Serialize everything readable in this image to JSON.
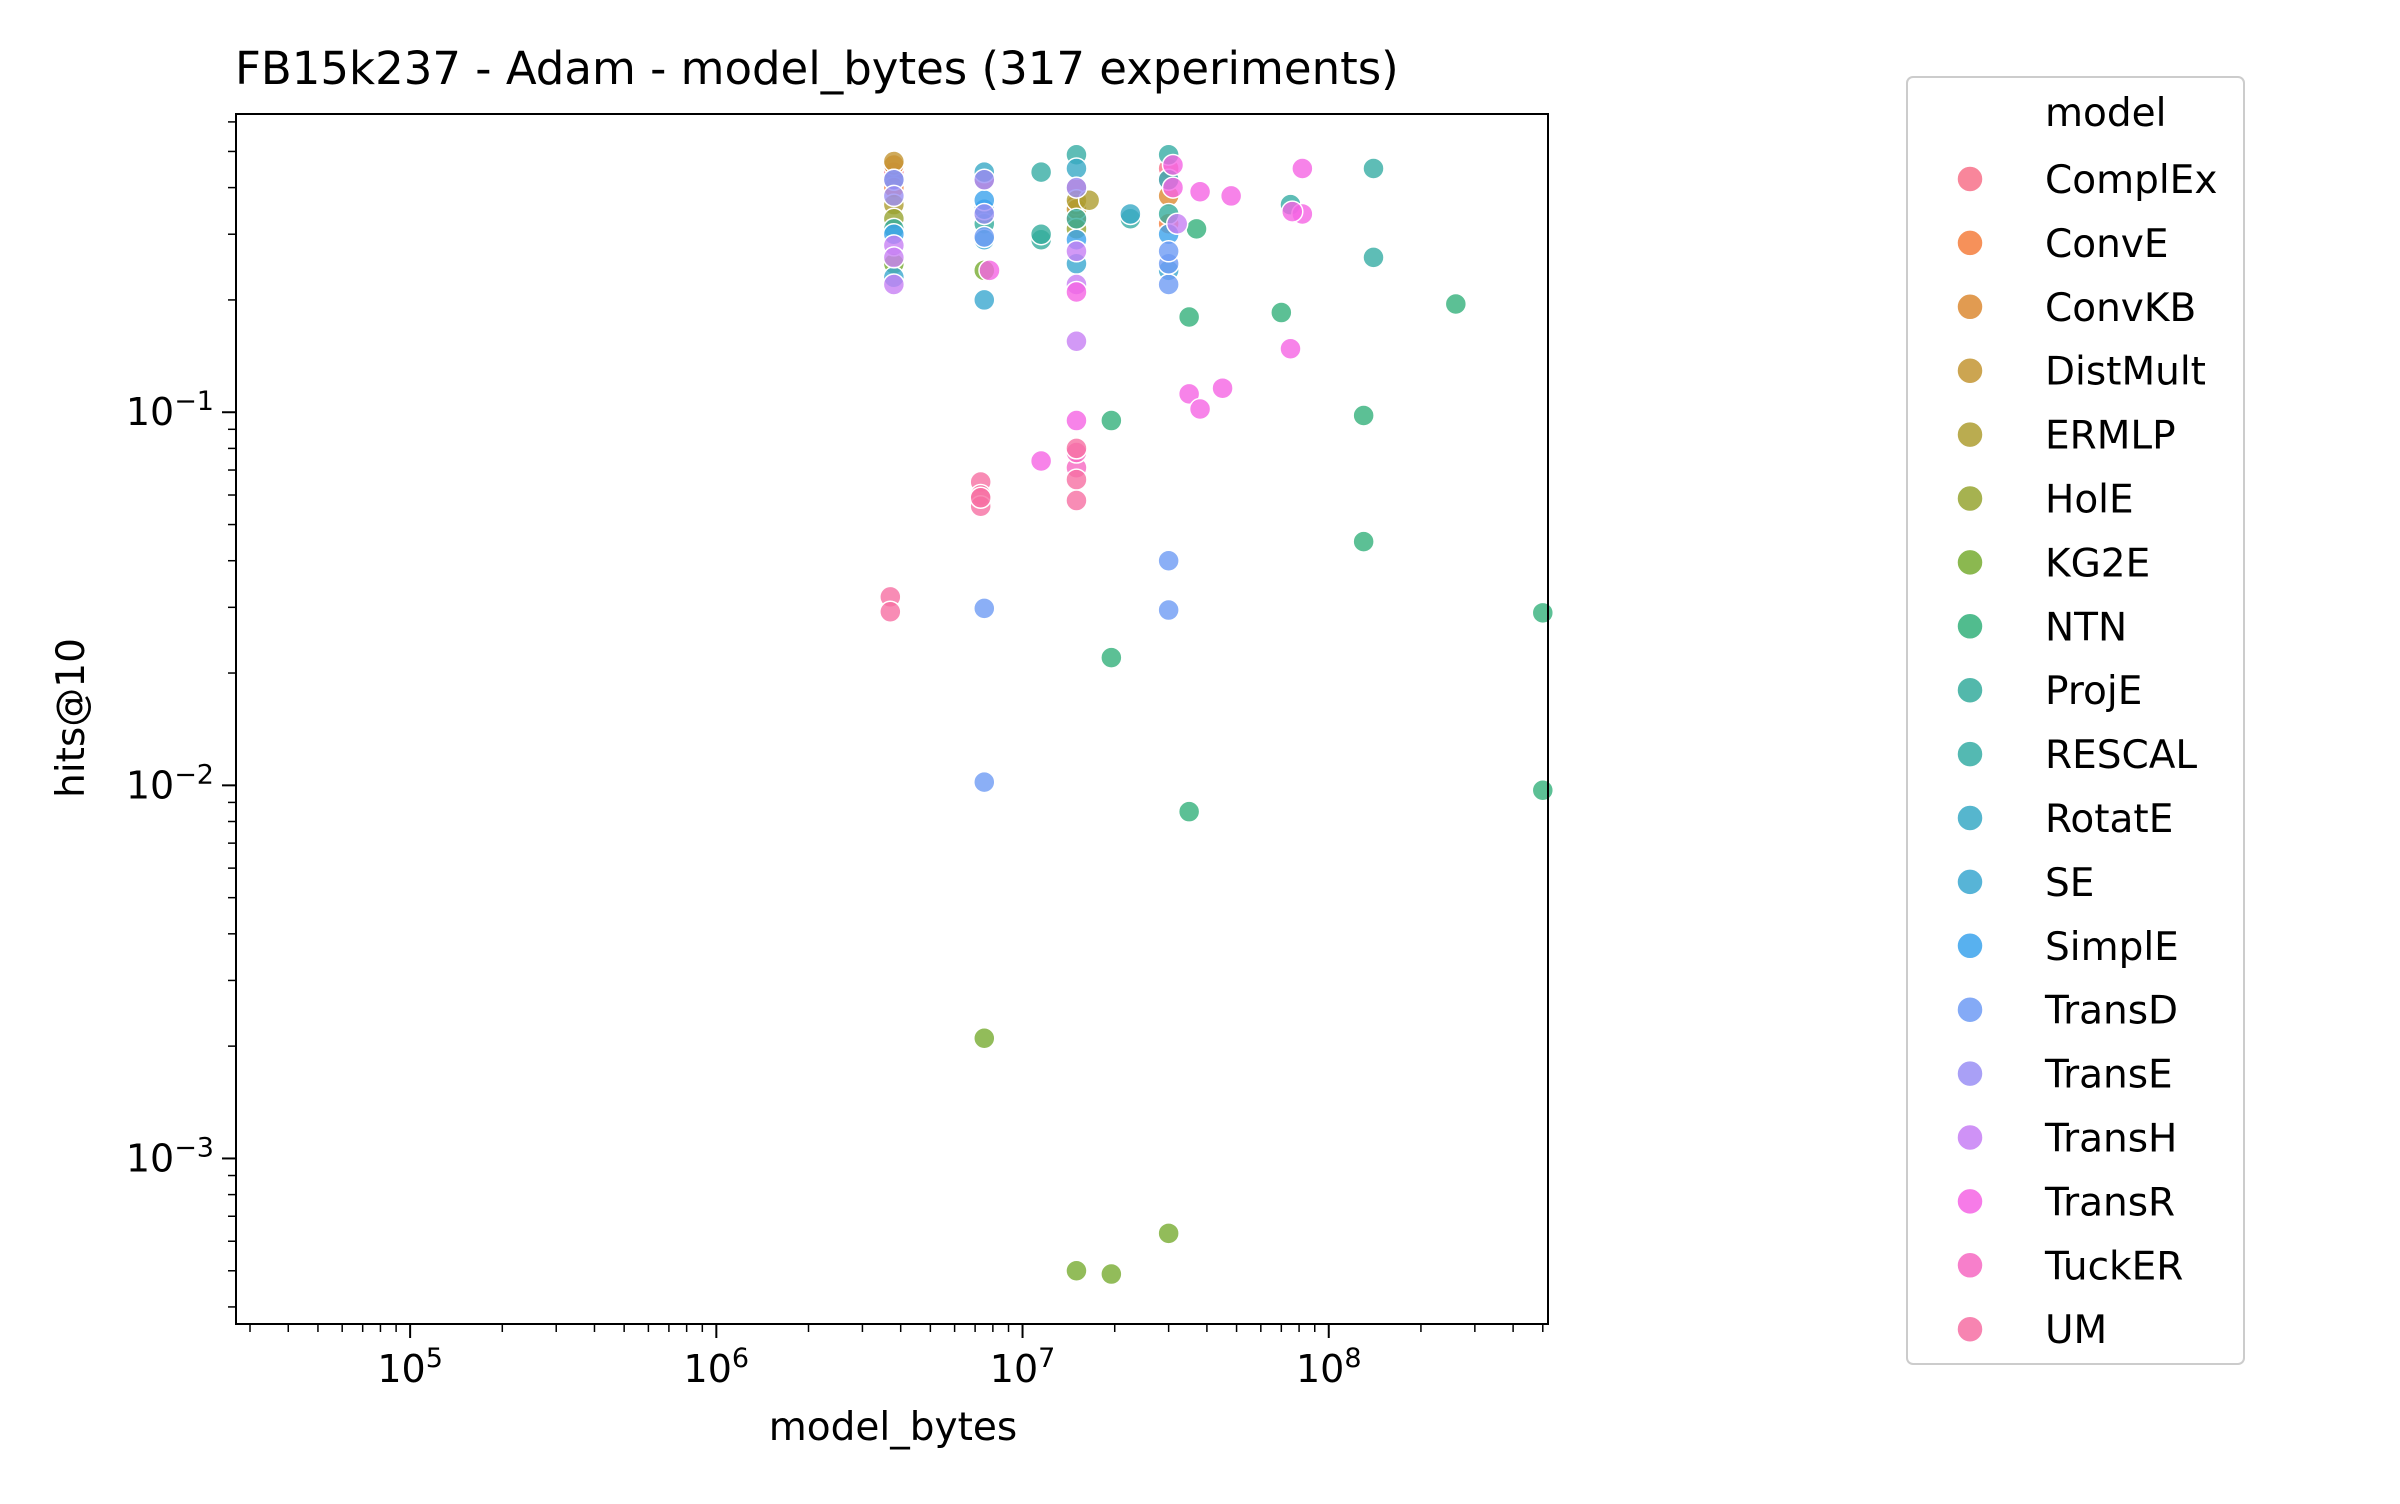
{
  "chart_data": {
    "type": "scatter",
    "title": "FB15k237 - Adam - model_bytes  (317 experiments)",
    "xlabel": "model_bytes",
    "ylabel": "hits@10",
    "xscale": "log",
    "yscale": "log",
    "xlim": [
      27000,
      520000000
    ],
    "ylim": [
      0.00036,
      0.63
    ],
    "x_ticks": [
      {
        "value": 100000,
        "base": "10",
        "exp": "5"
      },
      {
        "value": 1000000,
        "base": "10",
        "exp": "6"
      },
      {
        "value": 10000000,
        "base": "10",
        "exp": "7"
      },
      {
        "value": 100000000,
        "base": "10",
        "exp": "8"
      }
    ],
    "y_ticks": [
      {
        "value": 0.001,
        "base": "10",
        "exp": "−3"
      },
      {
        "value": 0.01,
        "base": "10",
        "exp": "−2"
      },
      {
        "value": 0.1,
        "base": "10",
        "exp": "−1"
      }
    ],
    "grid": false,
    "legend": {
      "title": "model",
      "position": "outside-right"
    },
    "series": [
      {
        "name": "ComplEx",
        "color": "#f77189",
        "points": [
          [
            3800000,
            0.44
          ],
          [
            7500000,
            0.42
          ],
          [
            15000000,
            0.4
          ],
          [
            30000000,
            0.45
          ]
        ]
      },
      {
        "name": "ConvE",
        "color": "#f57e3d",
        "points": [
          [
            3800000,
            0.4
          ],
          [
            15000000,
            0.33
          ],
          [
            30000000,
            0.32
          ]
        ]
      },
      {
        "name": "ConvKB",
        "color": "#dc8932",
        "points": [
          [
            3800000,
            0.46
          ],
          [
            15000000,
            0.36
          ],
          [
            30000000,
            0.38
          ]
        ]
      },
      {
        "name": "DistMult",
        "color": "#c39532",
        "points": [
          [
            3800000,
            0.47
          ],
          [
            15000000,
            0.35
          ],
          [
            30000000,
            0.42
          ]
        ]
      },
      {
        "name": "ERMLP",
        "color": "#ae9d31",
        "points": [
          [
            3800000,
            0.36
          ],
          [
            15000000,
            0.37
          ],
          [
            16500000,
            0.37
          ]
        ]
      },
      {
        "name": "HolE",
        "color": "#97a431",
        "points": [
          [
            3800000,
            0.33
          ],
          [
            7500000,
            0.34
          ],
          [
            15000000,
            0.31
          ]
        ]
      },
      {
        "name": "KG2E",
        "color": "#77ab31",
        "points": [
          [
            7500000,
            0.0021
          ],
          [
            15000000,
            0.0005
          ],
          [
            19500000,
            0.00049
          ],
          [
            30000000,
            0.00063
          ],
          [
            3800000,
            0.25
          ],
          [
            7500000,
            0.24
          ]
        ]
      },
      {
        "name": "NTN",
        "color": "#33b07a",
        "points": [
          [
            19500000,
            0.095
          ],
          [
            19500000,
            0.022
          ],
          [
            35000000,
            0.0085
          ],
          [
            35000000,
            0.18
          ],
          [
            70000000,
            0.185
          ],
          [
            130000000,
            0.045
          ],
          [
            130000000,
            0.098
          ],
          [
            260000000,
            0.195
          ],
          [
            500000000,
            0.029
          ],
          [
            500000000,
            0.0097
          ],
          [
            37000000,
            0.31
          ]
        ]
      },
      {
        "name": "ProjE",
        "color": "#35ac9c",
        "points": [
          [
            3800000,
            0.31
          ],
          [
            7500000,
            0.32
          ],
          [
            15000000,
            0.33
          ],
          [
            30000000,
            0.34
          ],
          [
            11500000,
            0.29
          ],
          [
            11500000,
            0.3
          ]
        ]
      },
      {
        "name": "RESCAL",
        "color": "#36ada4",
        "points": [
          [
            11500000,
            0.44
          ],
          [
            15000000,
            0.49
          ],
          [
            30000000,
            0.49
          ],
          [
            75000000,
            0.36
          ],
          [
            140000000,
            0.45
          ],
          [
            140000000,
            0.26
          ],
          [
            22500000,
            0.33
          ]
        ]
      },
      {
        "name": "RotatE",
        "color": "#38a9c5",
        "points": [
          [
            3800000,
            0.42
          ],
          [
            7500000,
            0.44
          ],
          [
            15000000,
            0.45
          ],
          [
            30000000,
            0.42
          ],
          [
            22500000,
            0.34
          ]
        ]
      },
      {
        "name": "SE",
        "color": "#39a7d0",
        "points": [
          [
            3800000,
            0.23
          ],
          [
            7500000,
            0.2
          ],
          [
            7500000,
            0.29
          ],
          [
            15000000,
            0.25
          ],
          [
            30000000,
            0.24
          ]
        ]
      },
      {
        "name": "SimplE",
        "color": "#3ba3ec",
        "points": [
          [
            3800000,
            0.3
          ],
          [
            7500000,
            0.35
          ],
          [
            15000000,
            0.29
          ],
          [
            30000000,
            0.3
          ],
          [
            7500000,
            0.37
          ]
        ]
      },
      {
        "name": "TransD",
        "color": "#6e9bf4",
        "points": [
          [
            7500000,
            0.0298
          ],
          [
            7500000,
            0.0102
          ],
          [
            30000000,
            0.04
          ],
          [
            30000000,
            0.0295
          ],
          [
            30000000,
            0.22
          ],
          [
            30000000,
            0.25
          ],
          [
            30000000,
            0.27
          ],
          [
            7500000,
            0.295
          ]
        ]
      },
      {
        "name": "TransE",
        "color": "#9a8ff4",
        "points": [
          [
            3800000,
            0.42
          ],
          [
            3800000,
            0.38
          ],
          [
            7500000,
            0.42
          ],
          [
            15000000,
            0.4
          ],
          [
            7500000,
            0.34
          ]
        ]
      },
      {
        "name": "TransH",
        "color": "#c77ff4",
        "points": [
          [
            3800000,
            0.28
          ],
          [
            3800000,
            0.26
          ],
          [
            3800000,
            0.22
          ],
          [
            15000000,
            0.155
          ],
          [
            15000000,
            0.27
          ],
          [
            15000000,
            0.22
          ],
          [
            32000000,
            0.32
          ]
        ]
      },
      {
        "name": "TransR",
        "color": "#f564e4",
        "points": [
          [
            15000000,
            0.095
          ],
          [
            11500000,
            0.074
          ],
          [
            35000000,
            0.112
          ],
          [
            38000000,
            0.102
          ],
          [
            45000000,
            0.116
          ],
          [
            38000000,
            0.39
          ],
          [
            48000000,
            0.38
          ],
          [
            75000000,
            0.148
          ],
          [
            82000000,
            0.45
          ],
          [
            82000000,
            0.34
          ],
          [
            76000000,
            0.345
          ],
          [
            31000000,
            0.4
          ],
          [
            31000000,
            0.46
          ],
          [
            15000000,
            0.21
          ],
          [
            7800000,
            0.24
          ]
        ]
      },
      {
        "name": "TuckER",
        "color": "#f668c2",
        "points": [
          [
            15000000,
            0.071
          ],
          [
            15000000,
            0.078
          ]
        ]
      },
      {
        "name": "UM",
        "color": "#f66fa3",
        "points": [
          [
            3700000,
            0.032
          ],
          [
            3700000,
            0.0292
          ],
          [
            7300000,
            0.065
          ],
          [
            7300000,
            0.06
          ],
          [
            7300000,
            0.056
          ],
          [
            15000000,
            0.08
          ],
          [
            15000000,
            0.066
          ],
          [
            15000000,
            0.058
          ],
          [
            7300000,
            0.059
          ]
        ]
      }
    ]
  }
}
